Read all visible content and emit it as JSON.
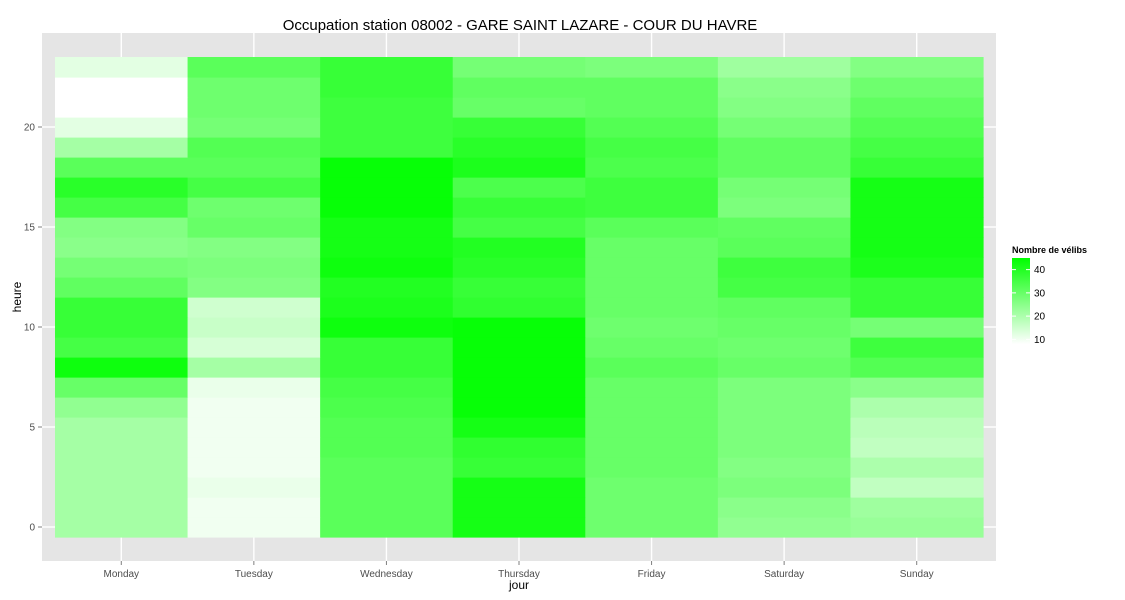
{
  "chart_data": {
    "type": "heatmap",
    "title": "Occupation station 08002 - GARE SAINT LAZARE - COUR DU HAVRE",
    "xlabel": "jour",
    "ylabel": "heure",
    "categories": [
      "Monday",
      "Tuesday",
      "Wednesday",
      "Thursday",
      "Friday",
      "Saturday",
      "Sunday"
    ],
    "hours": [
      0,
      1,
      2,
      3,
      4,
      5,
      6,
      7,
      8,
      9,
      10,
      11,
      12,
      13,
      14,
      15,
      16,
      17,
      18,
      19,
      20,
      21,
      22,
      23
    ],
    "y_ticks": [
      0,
      5,
      10,
      15,
      20
    ],
    "ylim": [
      -0.5,
      23.5
    ],
    "grid": true,
    "legend": {
      "title": "Nombre de vélibs",
      "breaks": [
        10,
        20,
        30,
        40
      ],
      "range": [
        8,
        45
      ],
      "position": "right",
      "low_color": "#ffffff",
      "high_color": "#00ff00"
    },
    "values": [
      [
        21,
        10,
        32,
        42,
        29,
        24,
        23
      ],
      [
        21,
        10,
        32,
        42,
        29,
        25,
        22
      ],
      [
        21,
        11,
        32,
        42,
        29,
        27,
        17
      ],
      [
        21,
        10,
        32,
        37,
        30,
        26,
        20
      ],
      [
        21,
        10,
        33,
        38,
        30,
        27,
        17
      ],
      [
        21,
        10,
        33,
        42,
        30,
        27,
        18
      ],
      [
        24,
        10,
        34,
        44,
        30,
        27,
        20
      ],
      [
        30,
        11,
        35,
        44,
        30,
        27,
        25
      ],
      [
        43,
        21,
        37,
        44,
        32,
        30,
        33
      ],
      [
        35,
        14,
        37,
        44,
        30,
        29,
        36
      ],
      [
        37,
        16,
        43,
        44,
        29,
        30,
        28
      ],
      [
        37,
        15,
        41,
        38,
        30,
        31,
        37
      ],
      [
        31,
        26,
        40,
        37,
        30,
        35,
        37
      ],
      [
        28,
        27,
        43,
        39,
        30,
        36,
        41
      ],
      [
        25,
        26,
        42,
        40,
        30,
        32,
        42
      ],
      [
        26,
        30,
        42,
        35,
        32,
        31,
        42
      ],
      [
        35,
        29,
        44,
        37,
        36,
        27,
        42
      ],
      [
        39,
        35,
        44,
        34,
        36,
        28,
        42
      ],
      [
        32,
        32,
        44,
        41,
        34,
        31,
        37
      ],
      [
        21,
        33,
        36,
        39,
        35,
        31,
        35
      ],
      [
        12,
        28,
        36,
        37,
        33,
        28,
        33
      ],
      [
        8,
        29,
        36,
        30,
        31,
        26,
        31
      ],
      [
        8,
        29,
        37,
        31,
        31,
        25,
        29
      ],
      [
        12,
        32,
        37,
        28,
        27,
        22,
        26
      ]
    ]
  },
  "colors": {
    "panel": "#e5e5e5",
    "grid": "#ffffff",
    "tick_mark": "#7f7f7f"
  }
}
